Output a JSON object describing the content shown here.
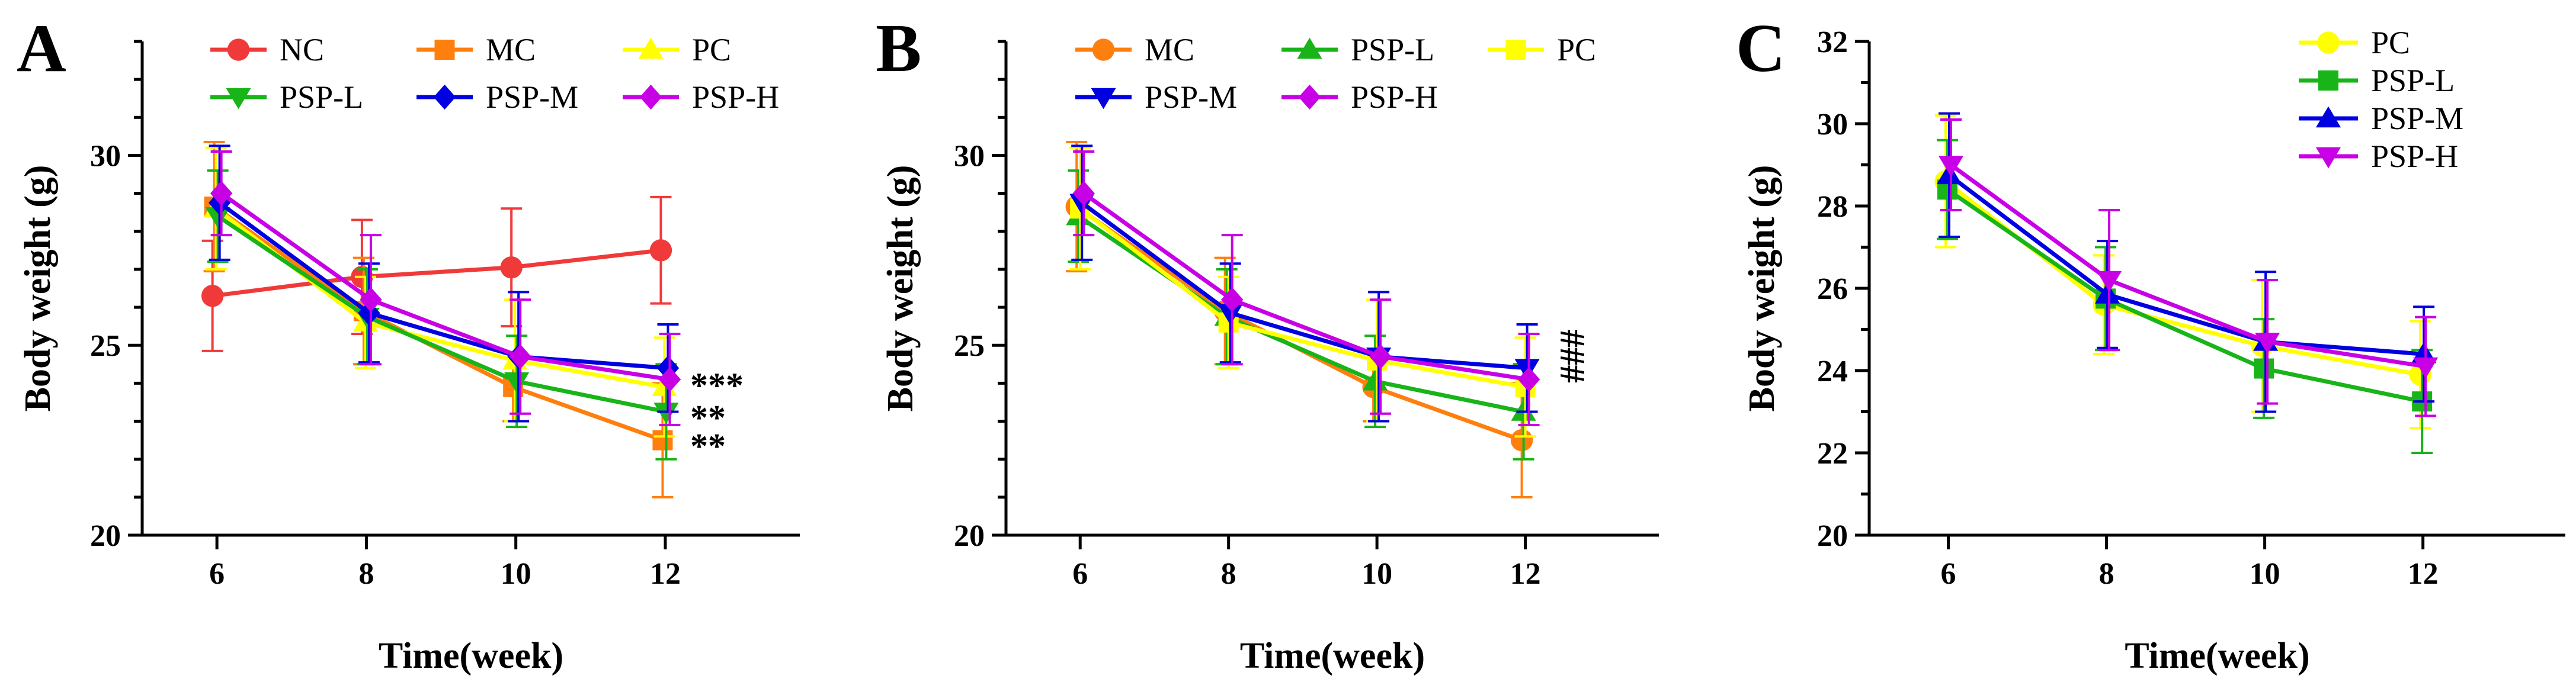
{
  "colors": {
    "NC": "#f03a3a",
    "MC": "#ff7f0e",
    "PC": "#ffff00",
    "PSP-L": "#18b418",
    "PSP-M": "#0000e0",
    "PSP-H": "#c800e6"
  },
  "chart_data": [
    {
      "panel": "A",
      "type": "line",
      "xlabel": "Time(week)",
      "ylabel": "Body weight (g)",
      "x": [
        6,
        8,
        10,
        12
      ],
      "x_ticks": [
        "6",
        "8",
        "10",
        "12"
      ],
      "ylim": [
        20,
        33
      ],
      "y_ticks": [
        "20",
        "25",
        "30"
      ],
      "legend": {
        "columns": 3,
        "placement": "top"
      },
      "series": [
        {
          "name": "NC",
          "marker": "circle",
          "values": [
            26.3,
            26.8,
            27.05,
            27.5
          ],
          "errors": [
            1.45,
            1.5,
            1.55,
            1.4
          ]
        },
        {
          "name": "MC",
          "marker": "square",
          "values": [
            28.65,
            25.9,
            23.9,
            22.5
          ],
          "errors": [
            1.7,
            1.4,
            0.9,
            1.5
          ]
        },
        {
          "name": "PC",
          "marker": "triangle-up",
          "values": [
            28.6,
            25.6,
            24.6,
            23.9
          ],
          "errors": [
            1.6,
            1.2,
            1.6,
            1.3
          ]
        },
        {
          "name": "PSP-L",
          "marker": "triangle-down",
          "values": [
            28.4,
            25.75,
            24.05,
            23.25
          ],
          "errors": [
            1.2,
            1.25,
            1.2,
            1.25
          ]
        },
        {
          "name": "PSP-M",
          "marker": "diamond",
          "values": [
            28.75,
            25.85,
            24.7,
            24.4
          ],
          "errors": [
            1.5,
            1.3,
            1.7,
            1.15
          ]
        },
        {
          "name": "PSP-H",
          "marker": "diamond",
          "values": [
            29.0,
            26.2,
            24.7,
            24.1
          ],
          "errors": [
            1.1,
            1.7,
            1.5,
            1.2
          ]
        }
      ],
      "annotations": [
        {
          "text": "***",
          "series": "PSP-H"
        },
        {
          "text": "**",
          "series": "PSP-L"
        },
        {
          "text": "**",
          "series": "MC"
        }
      ]
    },
    {
      "panel": "B",
      "type": "line",
      "xlabel": "Time(week)",
      "ylabel": "Body weight (g)",
      "x": [
        6,
        8,
        10,
        12
      ],
      "x_ticks": [
        "6",
        "8",
        "10",
        "12"
      ],
      "ylim": [
        20,
        33
      ],
      "y_ticks": [
        "20",
        "25",
        "30"
      ],
      "legend": {
        "columns": 3,
        "placement": "top"
      },
      "series": [
        {
          "name": "MC",
          "marker": "circle",
          "values": [
            28.65,
            25.9,
            23.9,
            22.5
          ],
          "errors": [
            1.7,
            1.4,
            0.9,
            1.5
          ]
        },
        {
          "name": "PSP-L",
          "marker": "triangle-up",
          "values": [
            28.4,
            25.75,
            24.05,
            23.25
          ],
          "errors": [
            1.2,
            1.25,
            1.2,
            1.25
          ]
        },
        {
          "name": "PC",
          "marker": "square",
          "values": [
            28.6,
            25.6,
            24.6,
            23.9
          ],
          "errors": [
            1.6,
            1.2,
            1.6,
            1.3
          ]
        },
        {
          "name": "PSP-M",
          "marker": "triangle-down",
          "values": [
            28.75,
            25.85,
            24.7,
            24.4
          ],
          "errors": [
            1.5,
            1.3,
            1.7,
            1.15
          ]
        },
        {
          "name": "PSP-H",
          "marker": "diamond",
          "values": [
            29.0,
            26.2,
            24.7,
            24.1
          ],
          "errors": [
            1.1,
            1.7,
            1.5,
            1.2
          ]
        }
      ],
      "annotations": [
        {
          "text": "###",
          "series": "PSP-M",
          "vertical": true
        }
      ]
    },
    {
      "panel": "C",
      "type": "line",
      "xlabel": "Time(week)",
      "ylabel": "Body weight (g)",
      "x": [
        6,
        8,
        10,
        12
      ],
      "x_ticks": [
        "6",
        "8",
        "10",
        "12"
      ],
      "ylim": [
        20,
        32
      ],
      "y_ticks": [
        "20",
        "22",
        "24",
        "26",
        "28",
        "30",
        "32"
      ],
      "legend": {
        "columns": 1,
        "placement": "top-right"
      },
      "series": [
        {
          "name": "PC",
          "marker": "circle",
          "values": [
            28.6,
            25.6,
            24.6,
            23.9
          ],
          "errors": [
            1.6,
            1.2,
            1.6,
            1.3
          ]
        },
        {
          "name": "PSP-L",
          "marker": "square",
          "values": [
            28.4,
            25.75,
            24.05,
            23.25
          ],
          "errors": [
            1.2,
            1.25,
            1.2,
            1.25
          ]
        },
        {
          "name": "PSP-M",
          "marker": "triangle-up",
          "values": [
            28.75,
            25.85,
            24.7,
            24.4
          ],
          "errors": [
            1.5,
            1.3,
            1.7,
            1.15
          ]
        },
        {
          "name": "PSP-H",
          "marker": "triangle-down",
          "values": [
            29.0,
            26.2,
            24.7,
            24.1
          ],
          "errors": [
            1.1,
            1.7,
            1.5,
            1.2
          ]
        }
      ],
      "annotations": []
    }
  ]
}
